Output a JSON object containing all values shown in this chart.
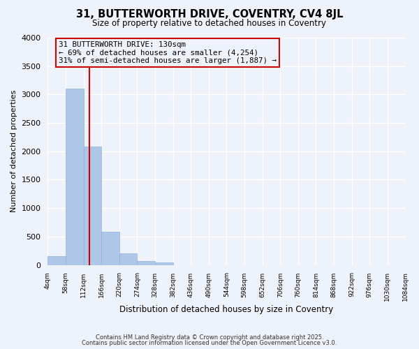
{
  "title": "31, BUTTERWORTH DRIVE, COVENTRY, CV4 8JL",
  "subtitle": "Size of property relative to detached houses in Coventry",
  "xlabel": "Distribution of detached houses by size in Coventry",
  "ylabel": "Number of detached properties",
  "bar_color": "#aec6e8",
  "bar_edge_color": "#8ab0d8",
  "background_color": "#eef2fa",
  "grid_color": "#ffffff",
  "bin_edges": [
    4,
    58,
    112,
    166,
    220,
    274,
    328,
    382,
    436,
    490,
    544,
    598,
    652,
    706,
    760,
    814,
    868,
    922,
    976,
    1030,
    1084
  ],
  "bin_labels": [
    "4sqm",
    "58sqm",
    "112sqm",
    "166sqm",
    "220sqm",
    "274sqm",
    "328sqm",
    "382sqm",
    "436sqm",
    "490sqm",
    "544sqm",
    "598sqm",
    "652sqm",
    "706sqm",
    "760sqm",
    "814sqm",
    "868sqm",
    "922sqm",
    "976sqm",
    "1030sqm",
    "1084sqm"
  ],
  "bar_heights": [
    150,
    3100,
    2080,
    580,
    210,
    70,
    40,
    0,
    0,
    0,
    0,
    0,
    0,
    0,
    0,
    0,
    0,
    0,
    0,
    0
  ],
  "ylim": [
    0,
    4000
  ],
  "yticks": [
    0,
    500,
    1000,
    1500,
    2000,
    2500,
    3000,
    3500,
    4000
  ],
  "property_line_x": 130,
  "property_line_color": "#cc0000",
  "annotation_title": "31 BUTTERWORTH DRIVE: 130sqm",
  "annotation_line1": "← 69% of detached houses are smaller (4,254)",
  "annotation_line2": "31% of semi-detached houses are larger (1,887) →",
  "annotation_box_color": "#cc0000",
  "footer_line1": "Contains HM Land Registry data © Crown copyright and database right 2025.",
  "footer_line2": "Contains public sector information licensed under the Open Government Licence v3.0."
}
